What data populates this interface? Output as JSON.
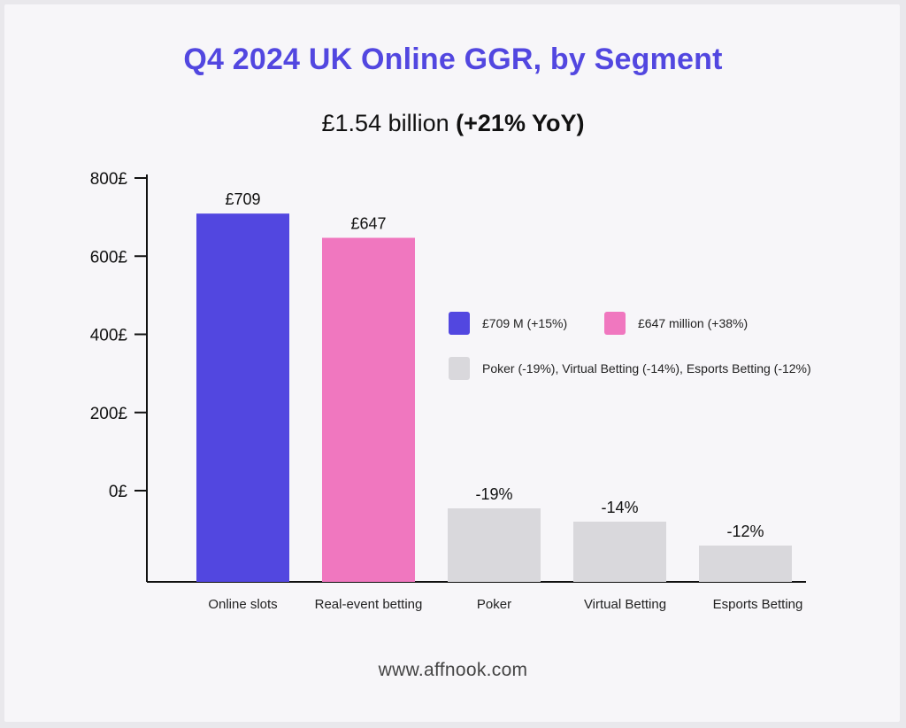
{
  "title": "Q4 2024 UK Online GGR, by Segment",
  "subtitle": {
    "amount": "£1.54 billion",
    "change": "(+21% YoY)"
  },
  "footer": "www.affnook.com",
  "colors": {
    "slots": "#5247e0",
    "betting": "#f077bf",
    "other": "#d9d8dc",
    "title": "#5247e0"
  },
  "legend": [
    {
      "label": "£709 M (+15%)",
      "color": "#5247e0"
    },
    {
      "label": "£647 million (+38%)",
      "color": "#f077bf"
    },
    {
      "label": "Poker (-19%), Virtual Betting (-14%), Esports Betting (-12%)",
      "color": "#d9d8dc"
    }
  ],
  "chart_data": {
    "type": "bar",
    "title": "Q4 2024 UK Online GGR, by Segment",
    "subtitle": "£1.54 billion (+21% YoY)",
    "categories": [
      "Online slots",
      "Real-event betting",
      "Poker",
      "Virtual Betting",
      "Esports Betting"
    ],
    "values": [
      709,
      647,
      -19,
      -14,
      -12
    ],
    "bar_labels": [
      "£709",
      "£647",
      "-19%",
      "-14%",
      "-12%"
    ],
    "bar_colors": [
      "#5247e0",
      "#f077bf",
      "#d9d8dc",
      "#d9d8dc",
      "#d9d8dc"
    ],
    "y_ticks": [
      "800£",
      "600£",
      "400£",
      "200£",
      "0£"
    ],
    "ylim": [
      -230,
      800
    ],
    "grid": false,
    "legend_position": "right"
  }
}
